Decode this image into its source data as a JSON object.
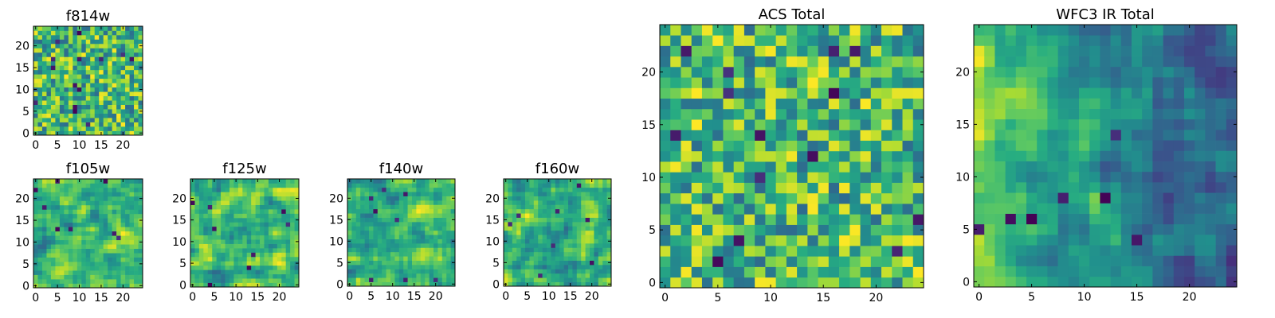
{
  "chart_data": [
    {
      "type": "heatmap",
      "title": "f814w",
      "xlabel": "",
      "ylabel": "",
      "grid_size": [
        25,
        25
      ],
      "xlim": [
        -0.5,
        24.5
      ],
      "ylim": [
        -0.5,
        24.5
      ],
      "x_ticks": [
        0,
        5,
        10,
        15,
        20
      ],
      "y_ticks": [
        0,
        5,
        10,
        15,
        20
      ],
      "colormap": "viridis",
      "seed": 814,
      "pattern": "noise"
    },
    {
      "type": "heatmap",
      "title": "f105w",
      "xlabel": "",
      "ylabel": "",
      "grid_size": [
        25,
        25
      ],
      "xlim": [
        -0.5,
        24.5
      ],
      "ylim": [
        -0.5,
        24.5
      ],
      "x_ticks": [
        0,
        5,
        10,
        15,
        20
      ],
      "y_ticks": [
        0,
        5,
        10,
        15,
        20
      ],
      "colormap": "viridis",
      "seed": 105,
      "pattern": "smooth"
    },
    {
      "type": "heatmap",
      "title": "f125w",
      "xlabel": "",
      "ylabel": "",
      "grid_size": [
        25,
        25
      ],
      "xlim": [
        -0.5,
        24.5
      ],
      "ylim": [
        -0.5,
        24.5
      ],
      "x_ticks": [
        0,
        5,
        10,
        15,
        20
      ],
      "y_ticks": [
        0,
        5,
        10,
        15,
        20
      ],
      "colormap": "viridis",
      "seed": 125,
      "pattern": "smooth"
    },
    {
      "type": "heatmap",
      "title": "f140w",
      "xlabel": "",
      "ylabel": "",
      "grid_size": [
        25,
        25
      ],
      "xlim": [
        -0.5,
        24.5
      ],
      "ylim": [
        -0.5,
        24.5
      ],
      "x_ticks": [
        0,
        5,
        10,
        15,
        20
      ],
      "y_ticks": [
        0,
        5,
        10,
        15,
        20
      ],
      "colormap": "viridis",
      "seed": 140,
      "pattern": "smooth"
    },
    {
      "type": "heatmap",
      "title": "f160w",
      "xlabel": "",
      "ylabel": "",
      "grid_size": [
        25,
        25
      ],
      "xlim": [
        -0.5,
        24.5
      ],
      "ylim": [
        -0.5,
        24.5
      ],
      "x_ticks": [
        0,
        5,
        10,
        15,
        20
      ],
      "y_ticks": [
        0,
        5,
        10,
        15,
        20
      ],
      "colormap": "viridis",
      "seed": 160,
      "pattern": "smooth"
    },
    {
      "type": "heatmap",
      "title": "ACS Total",
      "xlabel": "",
      "ylabel": "",
      "grid_size": [
        25,
        25
      ],
      "xlim": [
        -0.5,
        24.5
      ],
      "ylim": [
        -0.5,
        24.5
      ],
      "x_ticks": [
        0,
        5,
        10,
        15,
        20
      ],
      "y_ticks": [
        0,
        5,
        10,
        15,
        20
      ],
      "colormap": "viridis",
      "seed": 7,
      "pattern": "noise"
    },
    {
      "type": "heatmap",
      "title": "WFC3 IR Total",
      "xlabel": "",
      "ylabel": "",
      "grid_size": [
        25,
        25
      ],
      "xlim": [
        -0.5,
        24.5
      ],
      "ylim": [
        -0.5,
        24.5
      ],
      "x_ticks": [
        0,
        5,
        10,
        15,
        20
      ],
      "y_ticks": [
        0,
        5,
        10,
        15,
        20
      ],
      "colormap": "viridis",
      "seed": 33,
      "pattern": "gradient"
    }
  ]
}
